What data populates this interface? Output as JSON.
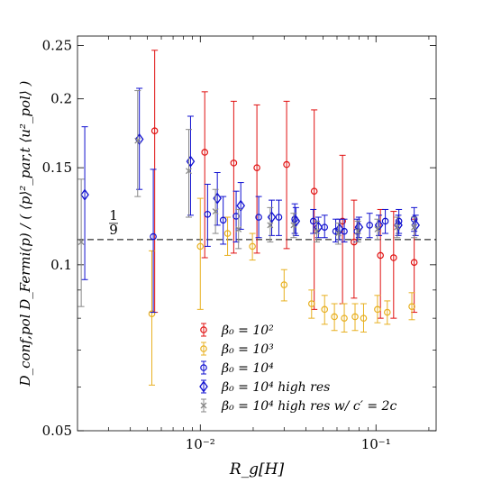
{
  "chart_data": {
    "type": "scatter",
    "xscale": "log",
    "yscale": "log",
    "xlim": [
      0.002,
      0.22
    ],
    "ylim": [
      0.05,
      0.26
    ],
    "xlabel": "R_g[H]",
    "ylabel": "D_conf,pol D_Fermi(p) / ( ⟨p⟩²_par,t ⟨u²_pol⟩ )",
    "x_ticks": [
      {
        "value": 0.01,
        "label": "10⁻²"
      },
      {
        "value": 0.1,
        "label": "10⁻¹"
      }
    ],
    "y_ticks": [
      {
        "value": 0.05,
        "label": "0.05"
      },
      {
        "value": 0.1,
        "label": "0.1"
      },
      {
        "value": 0.15,
        "label": "0.15"
      },
      {
        "value": 0.2,
        "label": "0.2"
      },
      {
        "value": 0.25,
        "label": "0.25"
      }
    ],
    "reference_line": {
      "y": 0.1111,
      "style": "dashed",
      "color": "#000000",
      "label": "1/9"
    },
    "legend_position": "lower-center",
    "series": [
      {
        "name": "β₀ = 10²",
        "color": "#e01010",
        "marker": "circle",
        "points": [
          {
            "x": 0.0055,
            "y": 0.175,
            "lo": 0.082,
            "hi": 0.245
          },
          {
            "x": 0.0106,
            "y": 0.16,
            "lo": 0.103,
            "hi": 0.206
          },
          {
            "x": 0.0155,
            "y": 0.153,
            "lo": 0.105,
            "hi": 0.198
          },
          {
            "x": 0.021,
            "y": 0.15,
            "lo": 0.105,
            "hi": 0.195
          },
          {
            "x": 0.031,
            "y": 0.152,
            "lo": 0.107,
            "hi": 0.198
          },
          {
            "x": 0.0445,
            "y": 0.136,
            "lo": 0.083,
            "hi": 0.191
          },
          {
            "x": 0.0645,
            "y": 0.12,
            "lo": 0.085,
            "hi": 0.158
          },
          {
            "x": 0.075,
            "y": 0.11,
            "lo": 0.087,
            "hi": 0.131
          },
          {
            "x": 0.106,
            "y": 0.104,
            "lo": 0.08,
            "hi": 0.126
          },
          {
            "x": 0.126,
            "y": 0.103,
            "lo": 0.08,
            "hi": 0.125
          },
          {
            "x": 0.165,
            "y": 0.101,
            "lo": 0.082,
            "hi": 0.121
          }
        ]
      },
      {
        "name": "β₀ = 10³",
        "color": "#e8b020",
        "marker": "circle",
        "points": [
          {
            "x": 0.0053,
            "y": 0.0815,
            "lo": 0.0605,
            "hi": 0.106
          },
          {
            "x": 0.01,
            "y": 0.108,
            "lo": 0.083,
            "hi": 0.132
          },
          {
            "x": 0.0143,
            "y": 0.114,
            "lo": 0.104,
            "hi": 0.122
          },
          {
            "x": 0.0198,
            "y": 0.108,
            "lo": 0.102,
            "hi": 0.114
          },
          {
            "x": 0.03,
            "y": 0.092,
            "lo": 0.086,
            "hi": 0.098
          },
          {
            "x": 0.043,
            "y": 0.085,
            "lo": 0.08,
            "hi": 0.09
          },
          {
            "x": 0.051,
            "y": 0.083,
            "lo": 0.078,
            "hi": 0.088
          },
          {
            "x": 0.058,
            "y": 0.0805,
            "lo": 0.076,
            "hi": 0.085
          },
          {
            "x": 0.066,
            "y": 0.08,
            "lo": 0.0755,
            "hi": 0.085
          },
          {
            "x": 0.076,
            "y": 0.0805,
            "lo": 0.076,
            "hi": 0.085
          },
          {
            "x": 0.085,
            "y": 0.08,
            "lo": 0.0755,
            "hi": 0.085
          },
          {
            "x": 0.102,
            "y": 0.083,
            "lo": 0.0785,
            "hi": 0.088
          },
          {
            "x": 0.116,
            "y": 0.082,
            "lo": 0.078,
            "hi": 0.086
          },
          {
            "x": 0.16,
            "y": 0.084,
            "lo": 0.0795,
            "hi": 0.089
          }
        ]
      },
      {
        "name": "β₀ = 10⁴",
        "color": "#1010d0",
        "marker": "circle",
        "points": [
          {
            "x": 0.0054,
            "y": 0.1125,
            "lo": 0.082,
            "hi": 0.149
          },
          {
            "x": 0.011,
            "y": 0.1235,
            "lo": 0.108,
            "hi": 0.14
          },
          {
            "x": 0.0135,
            "y": 0.1205,
            "lo": 0.109,
            "hi": 0.133
          },
          {
            "x": 0.016,
            "y": 0.1225,
            "lo": 0.11,
            "hi": 0.136
          },
          {
            "x": 0.0215,
            "y": 0.122,
            "lo": 0.112,
            "hi": 0.133
          },
          {
            "x": 0.028,
            "y": 0.122,
            "lo": 0.113,
            "hi": 0.131
          },
          {
            "x": 0.0345,
            "y": 0.121,
            "lo": 0.114,
            "hi": 0.129
          },
          {
            "x": 0.044,
            "y": 0.12,
            "lo": 0.114,
            "hi": 0.126
          },
          {
            "x": 0.051,
            "y": 0.117,
            "lo": 0.112,
            "hi": 0.123
          },
          {
            "x": 0.059,
            "y": 0.115,
            "lo": 0.11,
            "hi": 0.121
          },
          {
            "x": 0.066,
            "y": 0.115,
            "lo": 0.11,
            "hi": 0.121
          },
          {
            "x": 0.078,
            "y": 0.115,
            "lo": 0.11,
            "hi": 0.121
          },
          {
            "x": 0.092,
            "y": 0.118,
            "lo": 0.112,
            "hi": 0.124
          },
          {
            "x": 0.113,
            "y": 0.12,
            "lo": 0.114,
            "hi": 0.126
          },
          {
            "x": 0.135,
            "y": 0.12,
            "lo": 0.114,
            "hi": 0.126
          },
          {
            "x": 0.165,
            "y": 0.121,
            "lo": 0.115,
            "hi": 0.127
          }
        ]
      },
      {
        "name": "β₀ = 10⁴ high res",
        "color": "#1010d0",
        "marker": "diamond",
        "points": [
          {
            "x": 0.0022,
            "y": 0.134,
            "lo": 0.094,
            "hi": 0.178
          },
          {
            "x": 0.0045,
            "y": 0.169,
            "lo": 0.137,
            "hi": 0.209
          },
          {
            "x": 0.0088,
            "y": 0.154,
            "lo": 0.123,
            "hi": 0.186
          },
          {
            "x": 0.0125,
            "y": 0.132,
            "lo": 0.118,
            "hi": 0.147
          },
          {
            "x": 0.017,
            "y": 0.128,
            "lo": 0.116,
            "hi": 0.141
          },
          {
            "x": 0.0255,
            "y": 0.122,
            "lo": 0.113,
            "hi": 0.131
          },
          {
            "x": 0.035,
            "y": 0.12,
            "lo": 0.113,
            "hi": 0.127
          },
          {
            "x": 0.047,
            "y": 0.117,
            "lo": 0.112,
            "hi": 0.122
          },
          {
            "x": 0.062,
            "y": 0.116,
            "lo": 0.111,
            "hi": 0.121
          },
          {
            "x": 0.08,
            "y": 0.117,
            "lo": 0.112,
            "hi": 0.122
          },
          {
            "x": 0.104,
            "y": 0.118,
            "lo": 0.113,
            "hi": 0.123
          },
          {
            "x": 0.134,
            "y": 0.118,
            "lo": 0.113,
            "hi": 0.123
          },
          {
            "x": 0.168,
            "y": 0.118,
            "lo": 0.113,
            "hi": 0.123
          }
        ]
      },
      {
        "name": "β₀ = 10⁴ high res w/ c′ = 2c",
        "color": "#888888",
        "marker": "x",
        "points": [
          {
            "x": 0.0021,
            "y": 0.11,
            "lo": 0.084,
            "hi": 0.143
          },
          {
            "x": 0.0044,
            "y": 0.168,
            "lo": 0.133,
            "hi": 0.207
          },
          {
            "x": 0.0086,
            "y": 0.148,
            "lo": 0.122,
            "hi": 0.176
          },
          {
            "x": 0.0122,
            "y": 0.125,
            "lo": 0.114,
            "hi": 0.137
          },
          {
            "x": 0.0165,
            "y": 0.116,
            "lo": 0.107,
            "hi": 0.126
          },
          {
            "x": 0.025,
            "y": 0.118,
            "lo": 0.11,
            "hi": 0.127
          },
          {
            "x": 0.034,
            "y": 0.118,
            "lo": 0.112,
            "hi": 0.124
          },
          {
            "x": 0.046,
            "y": 0.115,
            "lo": 0.11,
            "hi": 0.12
          },
          {
            "x": 0.061,
            "y": 0.114,
            "lo": 0.109,
            "hi": 0.119
          },
          {
            "x": 0.079,
            "y": 0.115,
            "lo": 0.11,
            "hi": 0.12
          },
          {
            "x": 0.102,
            "y": 0.116,
            "lo": 0.111,
            "hi": 0.121
          },
          {
            "x": 0.132,
            "y": 0.117,
            "lo": 0.112,
            "hi": 0.122
          },
          {
            "x": 0.165,
            "y": 0.117,
            "lo": 0.112,
            "hi": 0.122
          }
        ]
      }
    ]
  }
}
